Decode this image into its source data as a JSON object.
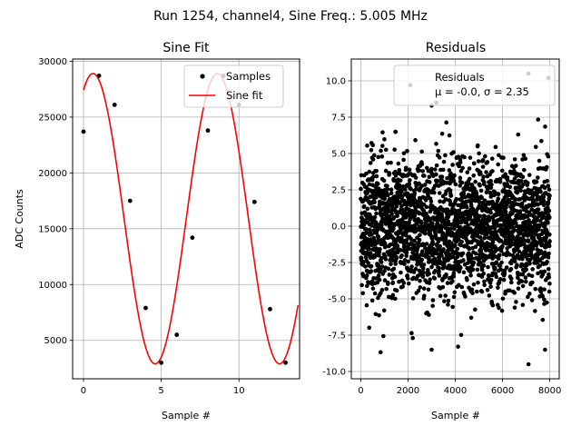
{
  "figure": {
    "suptitle": "Run 1254, channel4, Sine Freq.: 5.005 MHz"
  },
  "chart_data": [
    {
      "type": "scatter+line",
      "title": "Sine Fit",
      "xlabel": "Sample #",
      "ylabel": "ADC Counts",
      "xlim": [
        -0.7,
        13.9
      ],
      "ylim": [
        1560,
        30200
      ],
      "xticks": [
        0,
        5,
        10
      ],
      "yticks": [
        5000,
        10000,
        15000,
        20000,
        25000,
        30000
      ],
      "grid": true,
      "legend": {
        "position": "top-right",
        "entries": [
          "Samples",
          "Sine fit"
        ]
      },
      "series": [
        {
          "name": "Samples",
          "kind": "scatter",
          "color": "#000000",
          "x": [
            0,
            1,
            2,
            3,
            4,
            5,
            6,
            7,
            8,
            9,
            10,
            11,
            12,
            13
          ],
          "y": [
            23700,
            28700,
            26100,
            17500,
            7900,
            3000,
            5500,
            14200,
            23800,
            28700,
            26100,
            17400,
            7800,
            3000
          ]
        },
        {
          "name": "Sine fit",
          "kind": "line",
          "color": "#ff0000",
          "model": {
            "offset": 15900,
            "amplitude": 13000,
            "samples_per_period": 8.0,
            "phase_rad": 1.09,
            "x_start": 0,
            "x_end": 13.8
          }
        }
      ]
    },
    {
      "type": "scatter",
      "title": "Residuals",
      "xlabel": "Sample #",
      "ylabel": "",
      "xlim": [
        -400,
        8400
      ],
      "ylim": [
        -10.5,
        11.5
      ],
      "xticks": [
        0,
        2000,
        4000,
        6000,
        8000
      ],
      "yticks": [
        -10.0,
        -7.5,
        -5.0,
        -2.5,
        0.0,
        2.5,
        5.0,
        7.5,
        10.0
      ],
      "grid": true,
      "legend": {
        "position": "top-right",
        "entries": [
          "Residuals",
          "μ = -0.0, σ = 2.35"
        ]
      },
      "series": [
        {
          "name": "Residuals",
          "color": "#000000",
          "n_points": 8000,
          "mean": -0.0,
          "std": 2.35,
          "x_range": [
            0,
            8000
          ],
          "highlighted_points": [
            {
              "x": 2100,
              "y": 9.7
            },
            {
              "x": 3000,
              "y": 8.3
            },
            {
              "x": 3200,
              "y": 8.5
            },
            {
              "x": 7100,
              "y": 10.5
            },
            {
              "x": 7950,
              "y": 10.2
            },
            {
              "x": 7100,
              "y": -9.5
            },
            {
              "x": 3000,
              "y": -8.5
            },
            {
              "x": 2200,
              "y": -7.7
            },
            {
              "x": 7800,
              "y": -8.5
            }
          ]
        }
      ]
    }
  ]
}
